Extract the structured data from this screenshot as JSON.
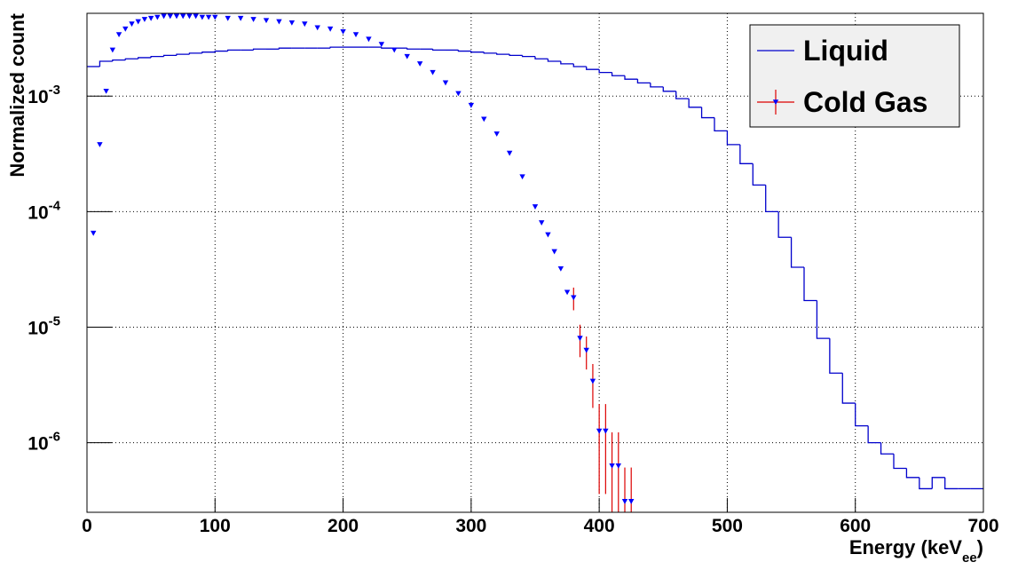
{
  "chart_data": {
    "type": "histogram+errorpoints",
    "x_label": [
      "Energy (keV",
      "ee",
      ")"
    ],
    "y_label": "Normalized count",
    "xlim": [
      0,
      700
    ],
    "xticks": [
      0,
      100,
      200,
      300,
      400,
      500,
      600,
      700
    ],
    "ylim": [
      2.5e-07,
      0.0052
    ],
    "log_y": true,
    "yticks": [
      {
        "value": 0.001,
        "label": "10",
        "sup": "-3"
      },
      {
        "value": 0.0001,
        "label": "10",
        "sup": "-4"
      },
      {
        "value": 1e-05,
        "label": "10",
        "sup": "-5"
      },
      {
        "value": 1e-06,
        "label": "10",
        "sup": "-6"
      }
    ],
    "grid": true,
    "legend": "top-right",
    "series": [
      {
        "name": "Liquid",
        "kind": "step",
        "color": "#0000cc",
        "bins": [
          0,
          10,
          20,
          30,
          40,
          50,
          60,
          70,
          80,
          90,
          100,
          110,
          120,
          130,
          140,
          150,
          160,
          170,
          180,
          190,
          200,
          210,
          220,
          230,
          240,
          250,
          260,
          270,
          280,
          290,
          300,
          310,
          320,
          330,
          340,
          350,
          360,
          370,
          380,
          390,
          400,
          410,
          420,
          430,
          440,
          450,
          460,
          470,
          480,
          490,
          500,
          510,
          520,
          530,
          540,
          550,
          560,
          570,
          580,
          590,
          600,
          610,
          620,
          630,
          640,
          650,
          660,
          670,
          680,
          690,
          700
        ],
        "values": [
          0.0018,
          0.002,
          0.00205,
          0.0021,
          0.00215,
          0.0022,
          0.00225,
          0.0023,
          0.00235,
          0.0024,
          0.00245,
          0.0025,
          0.0025,
          0.00255,
          0.00255,
          0.0026,
          0.0026,
          0.0026,
          0.0026,
          0.00265,
          0.00265,
          0.00265,
          0.00265,
          0.0026,
          0.0026,
          0.00255,
          0.00255,
          0.0025,
          0.0025,
          0.00245,
          0.0024,
          0.00235,
          0.0023,
          0.00225,
          0.0022,
          0.0021,
          0.002,
          0.0019,
          0.0018,
          0.0017,
          0.0016,
          0.0015,
          0.0014,
          0.0013,
          0.0012,
          0.0011,
          0.00095,
          0.0008,
          0.00065,
          0.0005,
          0.00038,
          0.00026,
          0.00017,
          0.0001,
          6e-05,
          3.3e-05,
          1.7e-05,
          8e-06,
          4e-06,
          2.2e-06,
          1.4e-06,
          1e-06,
          8e-07,
          6e-07,
          5e-07,
          4e-07,
          5e-07,
          4e-07,
          4e-07,
          4e-07
        ]
      },
      {
        "name": "Cold Gas",
        "kind": "points",
        "color": "#0000ff",
        "error_color": "#dd0000",
        "x": [
          5,
          10,
          15,
          20,
          25,
          30,
          35,
          40,
          45,
          50,
          55,
          60,
          65,
          70,
          75,
          80,
          85,
          90,
          95,
          100,
          110,
          120,
          130,
          140,
          150,
          160,
          170,
          180,
          190,
          200,
          210,
          220,
          230,
          240,
          250,
          260,
          270,
          280,
          290,
          300,
          310,
          320,
          330,
          340,
          350,
          355,
          360,
          365,
          370,
          375,
          380,
          385,
          390,
          395,
          400,
          405,
          410,
          415,
          420,
          425
        ],
        "values": [
          6.5e-05,
          0.00038,
          0.0011,
          0.0025,
          0.0034,
          0.0038,
          0.0042,
          0.0044,
          0.0046,
          0.0047,
          0.0048,
          0.0049,
          0.0049,
          0.0049,
          0.0049,
          0.0049,
          0.0049,
          0.0048,
          0.0048,
          0.0048,
          0.0047,
          0.0047,
          0.0046,
          0.0045,
          0.0044,
          0.0043,
          0.0042,
          0.0039,
          0.0038,
          0.0036,
          0.0034,
          0.0031,
          0.0028,
          0.0025,
          0.0022,
          0.0019,
          0.0016,
          0.0013,
          0.00105,
          0.00083,
          0.00063,
          0.00047,
          0.00032,
          0.0002,
          0.00011,
          8e-05,
          6.3e-05,
          4.5e-05,
          3.2e-05,
          2e-05,
          1.8e-05,
          8e-06,
          6.3e-06,
          3.4e-06,
          1.26e-06,
          1.26e-06,
          6.3e-07,
          6.3e-07,
          3.1e-07,
          3.1e-07
        ],
        "errors": [
          null,
          null,
          null,
          null,
          null,
          null,
          null,
          null,
          null,
          null,
          null,
          null,
          null,
          null,
          null,
          null,
          null,
          null,
          null,
          null,
          null,
          null,
          null,
          null,
          null,
          null,
          null,
          null,
          null,
          null,
          null,
          null,
          null,
          null,
          null,
          null,
          null,
          null,
          null,
          null,
          null,
          null,
          null,
          null,
          null,
          null,
          null,
          null,
          null,
          null,
          4e-06,
          2.5e-06,
          2e-06,
          1.4e-06,
          9e-07,
          9e-07,
          6e-07,
          6e-07,
          3e-07,
          3e-07
        ]
      }
    ]
  }
}
